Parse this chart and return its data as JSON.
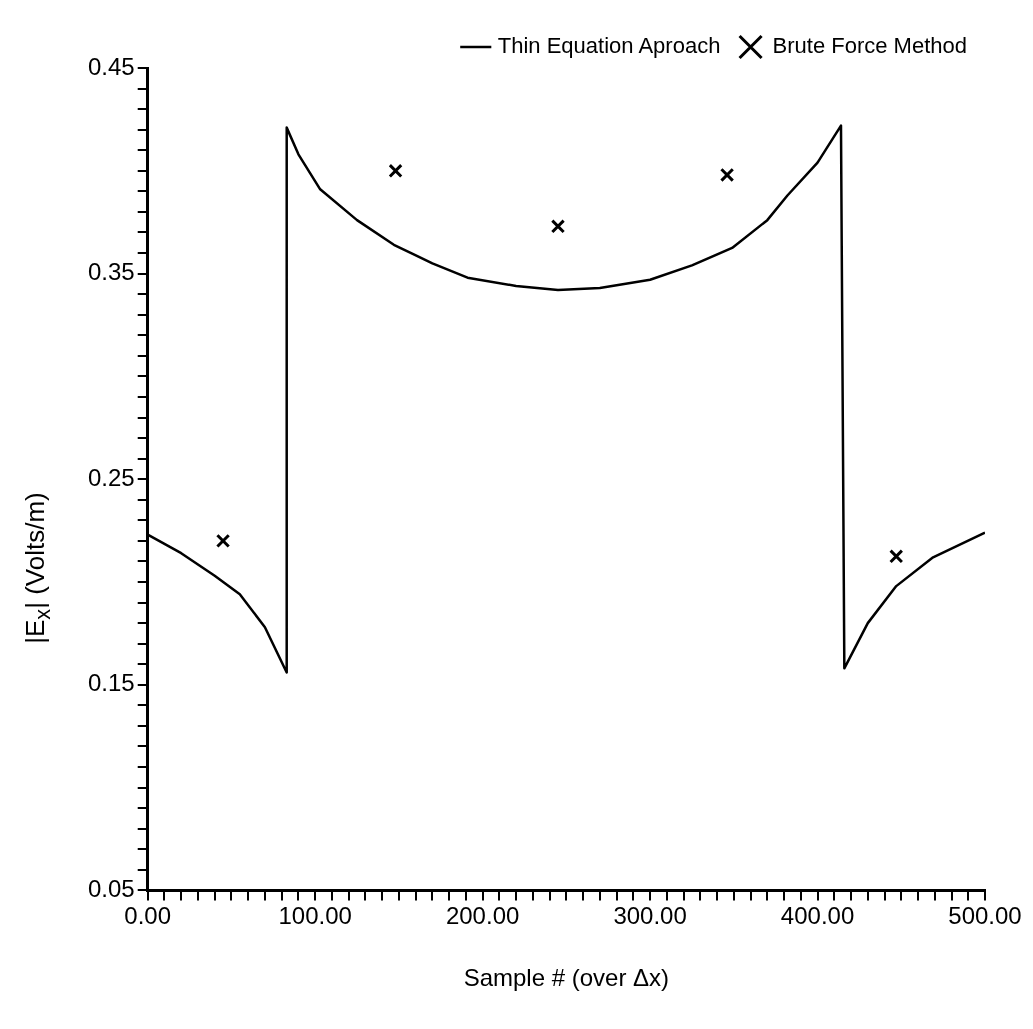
{
  "chart_data": {
    "type": "line",
    "xlabel": "Sample # (over Δx)",
    "ylabel": "|E$_{x}$|  (Volts/m)",
    "xlim": [
      0,
      500
    ],
    "ylim": [
      0.05,
      0.45
    ],
    "xticks": [
      {
        "value": 0,
        "label": "0.00"
      },
      {
        "value": 10,
        "label": null
      },
      {
        "value": 20,
        "label": null
      },
      {
        "value": 30,
        "label": null
      },
      {
        "value": 40,
        "label": null
      },
      {
        "value": 50,
        "label": null
      },
      {
        "value": 60,
        "label": null
      },
      {
        "value": 70,
        "label": null
      },
      {
        "value": 80,
        "label": null
      },
      {
        "value": 90,
        "label": null
      },
      {
        "value": 100,
        "label": "100.00"
      },
      {
        "value": 110,
        "label": null
      },
      {
        "value": 120,
        "label": null
      },
      {
        "value": 130,
        "label": null
      },
      {
        "value": 140,
        "label": null
      },
      {
        "value": 150,
        "label": null
      },
      {
        "value": 160,
        "label": null
      },
      {
        "value": 170,
        "label": null
      },
      {
        "value": 180,
        "label": null
      },
      {
        "value": 190,
        "label": null
      },
      {
        "value": 200,
        "label": "200.00"
      },
      {
        "value": 210,
        "label": null
      },
      {
        "value": 220,
        "label": null
      },
      {
        "value": 230,
        "label": null
      },
      {
        "value": 240,
        "label": null
      },
      {
        "value": 250,
        "label": null
      },
      {
        "value": 260,
        "label": null
      },
      {
        "value": 270,
        "label": null
      },
      {
        "value": 280,
        "label": null
      },
      {
        "value": 290,
        "label": null
      },
      {
        "value": 300,
        "label": "300.00"
      },
      {
        "value": 310,
        "label": null
      },
      {
        "value": 320,
        "label": null
      },
      {
        "value": 330,
        "label": null
      },
      {
        "value": 340,
        "label": null
      },
      {
        "value": 350,
        "label": null
      },
      {
        "value": 360,
        "label": null
      },
      {
        "value": 370,
        "label": null
      },
      {
        "value": 380,
        "label": null
      },
      {
        "value": 390,
        "label": null
      },
      {
        "value": 400,
        "label": "400.00"
      },
      {
        "value": 410,
        "label": null
      },
      {
        "value": 420,
        "label": null
      },
      {
        "value": 430,
        "label": null
      },
      {
        "value": 440,
        "label": null
      },
      {
        "value": 450,
        "label": null
      },
      {
        "value": 460,
        "label": null
      },
      {
        "value": 470,
        "label": null
      },
      {
        "value": 480,
        "label": null
      },
      {
        "value": 490,
        "label": null
      },
      {
        "value": 500,
        "label": "500.00"
      }
    ],
    "yticks": [
      0.05,
      {
        "value": 0.06,
        "label": null
      },
      {
        "value": 0.07,
        "label": null
      },
      {
        "value": 0.08,
        "label": null
      },
      {
        "value": 0.09,
        "label": null
      },
      {
        "value": 0.1,
        "label": null
      },
      {
        "value": 0.11,
        "label": null
      },
      {
        "value": 0.12,
        "label": null
      },
      {
        "value": 0.13,
        "label": null
      },
      {
        "value": 0.14,
        "label": null
      },
      0.15,
      {
        "value": 0.16,
        "label": null
      },
      {
        "value": 0.17,
        "label": null
      },
      {
        "value": 0.18,
        "label": null
      },
      {
        "value": 0.19,
        "label": null
      },
      {
        "value": 0.2,
        "label": null
      },
      {
        "value": 0.21,
        "label": null
      },
      {
        "value": 0.22,
        "label": null
      },
      {
        "value": 0.23,
        "label": null
      },
      {
        "value": 0.24,
        "label": null
      },
      0.25,
      {
        "value": 0.26,
        "label": null
      },
      {
        "value": 0.27,
        "label": null
      },
      {
        "value": 0.28,
        "label": null
      },
      {
        "value": 0.29,
        "label": null
      },
      {
        "value": 0.3,
        "label": null
      },
      {
        "value": 0.31,
        "label": null
      },
      {
        "value": 0.32,
        "label": null
      },
      {
        "value": 0.33,
        "label": null
      },
      {
        "value": 0.34,
        "label": null
      },
      0.35,
      {
        "value": 0.36,
        "label": null
      },
      {
        "value": 0.37,
        "label": null
      },
      {
        "value": 0.38,
        "label": null
      },
      {
        "value": 0.39,
        "label": null
      },
      {
        "value": 0.4,
        "label": null
      },
      {
        "value": 0.41,
        "label": null
      },
      {
        "value": 0.42,
        "label": null
      },
      {
        "value": 0.43,
        "label": null
      },
      {
        "value": 0.44,
        "label": null
      },
      0.45
    ],
    "grid": false,
    "legend": "top right",
    "series": [
      {
        "name": "Thin Equation Aproach",
        "type": "line",
        "color": "#000000",
        "marker": "none",
        "line_style": "solid",
        "x": [
          0,
          20,
          40,
          55,
          70,
          83,
          83,
          90,
          103,
          125,
          147,
          170,
          191,
          220,
          245,
          270,
          300,
          325,
          349,
          370,
          382,
          400,
          414,
          416,
          430,
          447,
          469,
          500
        ],
        "values": [
          0.223,
          0.214,
          0.203,
          0.194,
          0.178,
          0.156,
          0.421,
          0.408,
          0.391,
          0.376,
          0.364,
          0.355,
          0.348,
          0.344,
          0.342,
          0.343,
          0.347,
          0.354,
          0.3625,
          0.376,
          0.388,
          0.404,
          0.422,
          0.158,
          0.18,
          0.198,
          0.212,
          0.224
        ]
      },
      {
        "name": "Brute Force Method",
        "type": "scatter",
        "color": "#000000",
        "marker": "cross",
        "x": [
          45,
          148,
          245,
          346,
          447
        ],
        "values": [
          0.22,
          0.4,
          0.373,
          0.398,
          0.2125
        ]
      }
    ]
  }
}
